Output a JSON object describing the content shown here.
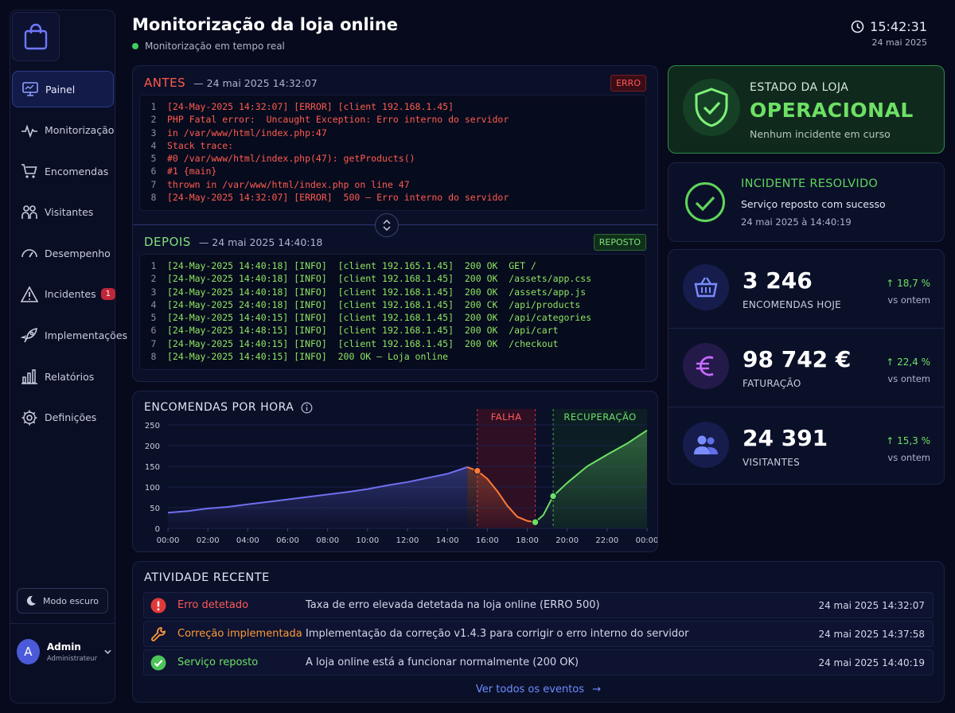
{
  "sidebar": {
    "items": [
      {
        "label": "Painel",
        "icon": "monitor-icon",
        "active": true
      },
      {
        "label": "Monitorização",
        "icon": "pulse-icon"
      },
      {
        "label": "Encomendas",
        "icon": "cart-icon"
      },
      {
        "label": "Visitantes",
        "icon": "users-icon"
      },
      {
        "label": "Desempenho",
        "icon": "gauge-icon"
      },
      {
        "label": "Incidentes",
        "icon": "warning-icon",
        "badge": "1"
      },
      {
        "label": "Implementações",
        "icon": "rocket-icon"
      },
      {
        "label": "Relatórios",
        "icon": "bar-chart-icon"
      },
      {
        "label": "Definições",
        "icon": "gear-icon"
      }
    ],
    "dark_mode_label": "Modo escuro",
    "user": {
      "initial": "A",
      "name": "Admin",
      "role": "Administrateur"
    }
  },
  "header": {
    "title": "Monitorização da loja online",
    "subtitle": "Monitorização em tempo real",
    "time": "15:42:31",
    "date": "24 mai 2025"
  },
  "logs": {
    "before": {
      "label": "ANTES",
      "timestamp": "—  24 mai 2025 14:32:07",
      "tag": "ERRO",
      "lines": [
        "[24-May-2025 14:32:07] [ERROR] [client 192.168.1.45]",
        "PHP Fatal error:  Uncaught Exception: Erro interno do servidor",
        "in /var/www/html/index.php:47",
        "Stack trace:",
        "#0 /var/www/html/index.php(47): getProducts()",
        "#1 {main}",
        "thrown in /var/www/html/index.php on line 47",
        "[24-May-2025 14:32:07] [ERROR]  500 — Erro interno do servidor"
      ]
    },
    "after": {
      "label": "DEPOIS",
      "timestamp": "—  24 mai 2025 14:40:18",
      "tag": "REPOSTO",
      "lines": [
        "[24-May-2025 14:40:18] [INFO]  [client 192.165.1.45]  200 OK  GET /",
        "[24-May-2025 14:40:18] [INFO]  [client 192.168.1.45]  200 OK  /assets/app.css",
        "[24-May-2025 14:40:18] [INFO]  [client 192.168.1.45]  200 OK  /assets/app.js",
        "[24-May-2025 24:40:18] [INFO]  [client 192.168.1.45]  200 CK  /api/products",
        "[24-May-2025 14:40:15] [INFO]  [client 192.168.1.45]  200 OK  /api/categories",
        "[24-May-2025 14:48:15] [INFO]  [client 192.168.1.45]  200 OK  /api/cart",
        "[24-May-2025 14:40:15] [INFO]  [client 192.168.1.45]  200 OK  /checkout",
        "[24-May-2025 14:40:15] [INFO]  200 OK — Loja online"
      ]
    }
  },
  "chart_data": {
    "type": "line",
    "title": "ENCOMENDAS POR HORA",
    "x_ticks": [
      "00:00",
      "02:00",
      "04:00",
      "06:00",
      "08:00",
      "10:00",
      "12:00",
      "14:00",
      "16:00",
      "18:00",
      "20:00",
      "22:00",
      "00:00"
    ],
    "y_ticks": [
      0,
      50,
      100,
      150,
      200,
      250
    ],
    "ylim": [
      0,
      250
    ],
    "xlim": [
      0,
      24
    ],
    "annotations": [
      {
        "label": "FALHA",
        "from": 15.5,
        "to": 18.4
      },
      {
        "label": "RECUPERAÇÃO",
        "from": 19.3,
        "to": 24
      }
    ],
    "series": [
      {
        "segment": "normal",
        "color": "#6f6ff0",
        "x": [
          0,
          1,
          2,
          3,
          4,
          5,
          6,
          7,
          8,
          9,
          10,
          11,
          12,
          13,
          14,
          15.0
        ],
        "y": [
          38,
          42,
          48,
          52,
          58,
          64,
          70,
          76,
          82,
          88,
          95,
          104,
          112,
          122,
          132,
          148
        ]
      },
      {
        "segment": "failure",
        "color": "#ff7a35",
        "x": [
          15.0,
          15.5,
          16.0,
          16.5,
          17.0,
          17.5,
          18.0,
          18.4
        ],
        "y": [
          148,
          139,
          120,
          90,
          55,
          28,
          18,
          15
        ]
      },
      {
        "segment": "recovery",
        "color": "#6ee065",
        "x": [
          18.4,
          18.8,
          19.3,
          20,
          21,
          22,
          23,
          24
        ],
        "y": [
          15,
          32,
          78,
          110,
          150,
          178,
          205,
          237
        ]
      }
    ],
    "markers": [
      {
        "x": 15.5,
        "y": 139,
        "color": "#ff7a35"
      },
      {
        "x": 18.4,
        "y": 15,
        "color": "#6ee065"
      },
      {
        "x": 19.3,
        "y": 78,
        "color": "#6ee065"
      }
    ]
  },
  "status": {
    "label": "ESTADO DA LOJA",
    "value": "OPERACIONAL",
    "sub": "Nenhum incidente em curso"
  },
  "resolved": {
    "title": "INCIDENTE RESOLVIDO",
    "sub": "Serviço reposto com sucesso",
    "time": "24 mai 2025 à 14:40:19"
  },
  "kpis": [
    {
      "value": "3 246",
      "label": "ENCOMENDAS HOJE",
      "delta": "18,7 %",
      "vs": "vs ontem",
      "icon": "basket-icon",
      "color": "#7b8cff"
    },
    {
      "value": "98 742 €",
      "label": "FATURAÇÃO",
      "delta": "22,4 %",
      "vs": "vs ontem",
      "icon": "euro-icon",
      "color": "#c56bff"
    },
    {
      "value": "24 391",
      "label": "VISITANTES",
      "delta": "15,3 %",
      "vs": "vs ontem",
      "icon": "users-icon",
      "color": "#7b8cff"
    }
  ],
  "activity": {
    "title": "ATIVIDADE RECENTE",
    "rows": [
      {
        "type": "Erro detetado",
        "desc": "Taxa de erro elevada detetada na loja online (ERRO 500)",
        "time": "24 mai 2025 14:32:07",
        "color": "#ff5a5a",
        "icon": "error-icon"
      },
      {
        "type": "Correção implementada",
        "desc": "Implementação da correção v1.4.3 para corrigir o erro interno do servidor",
        "time": "24 mai 2025 14:37:58",
        "color": "#ff9a3a",
        "icon": "wrench-icon"
      },
      {
        "type": "Serviço reposto",
        "desc": "A loja online está a funcionar normalmente (200 OK)",
        "time": "24 mai 2025 14:40:19",
        "color": "#6ee065",
        "icon": "check-icon"
      }
    ],
    "link": "Ver todos os eventos"
  }
}
